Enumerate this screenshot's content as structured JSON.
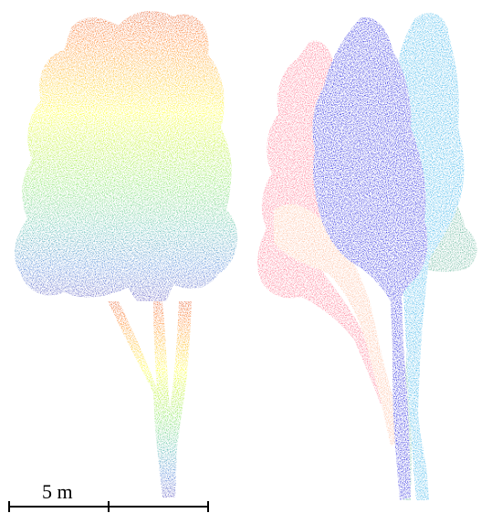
{
  "figure": {
    "left_panel": {
      "description_key": "tree-colored-by-height",
      "color_ramp": [
        "#3a2fb0",
        "#2f6fd0",
        "#3ab0a0",
        "#66dd40",
        "#b8f000",
        "#ffff00",
        "#ffb000",
        "#ff6a00",
        "#e03a00"
      ]
    },
    "right_panel": {
      "description_key": "tree-segmented-by-instance",
      "instance_colors": [
        "#ff5a78",
        "#ffb08a",
        "#0a0ad8",
        "#1aa6e6",
        "#4aa888"
      ]
    },
    "scale_bar": {
      "label": "5 m"
    }
  }
}
